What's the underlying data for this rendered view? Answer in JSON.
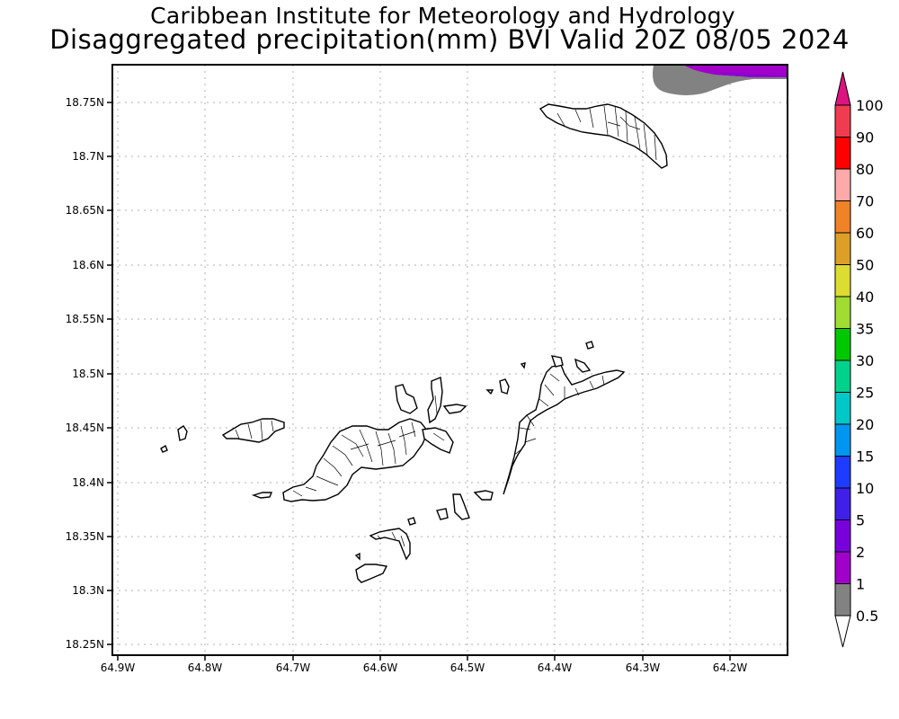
{
  "titles": {
    "line1": "Caribbean Institute for Meteorology and Hydrology",
    "line2": "Disaggregated precipitation(mm) BVI Valid 20Z 08/05 2024"
  },
  "axes": {
    "lat_ticks": [
      "18.75N",
      "18.7N",
      "18.65N",
      "18.6N",
      "18.55N",
      "18.5N",
      "18.45N",
      "18.4N",
      "18.35N",
      "18.3N",
      "18.25N"
    ],
    "lon_ticks": [
      "64.9W",
      "64.8W",
      "64.7W",
      "64.6W",
      "64.5W",
      "64.4W",
      "64.3W",
      "64.2W"
    ]
  },
  "colorbar": {
    "labels": [
      "100",
      "90",
      "80",
      "70",
      "60",
      "50",
      "40",
      "35",
      "30",
      "25",
      "20",
      "15",
      "10",
      "5",
      "2",
      "1",
      "0.5"
    ],
    "colors": [
      "#dc1480",
      "#f03c50",
      "#ff0000",
      "#ffaaaa",
      "#f08228",
      "#dca028",
      "#dcdc32",
      "#a0dc32",
      "#00c800",
      "#00d28c",
      "#00c8c8",
      "#0096f0",
      "#1e3cff",
      "#4020e8",
      "#7800dc",
      "#a000c8",
      "#828282",
      "#ffffff"
    ]
  },
  "map": {
    "land_fill": "#ffffff",
    "outline_color": "#000000",
    "gray_band": "#828282",
    "purple_band": "#a000c8"
  }
}
